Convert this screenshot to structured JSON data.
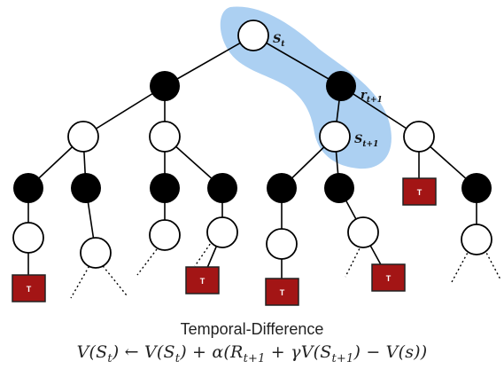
{
  "labels": {
    "s_t": "S",
    "s_t_sub": "t",
    "r_t1": "r",
    "r_t1_sub": "t+1",
    "s_t1": "S",
    "s_t1_sub": "t+1",
    "terminal": "T"
  },
  "caption": {
    "title": "Temporal-Difference",
    "equation": "V(S_t) ← V(S_t) + α(R_{t+1} + γV(S_{t+1}) − V(s))"
  },
  "colors": {
    "highlight": "#9ec8f0",
    "decision_node": "#000000",
    "chance_node": "#ffffff",
    "terminal_fill": "#a31515"
  }
}
